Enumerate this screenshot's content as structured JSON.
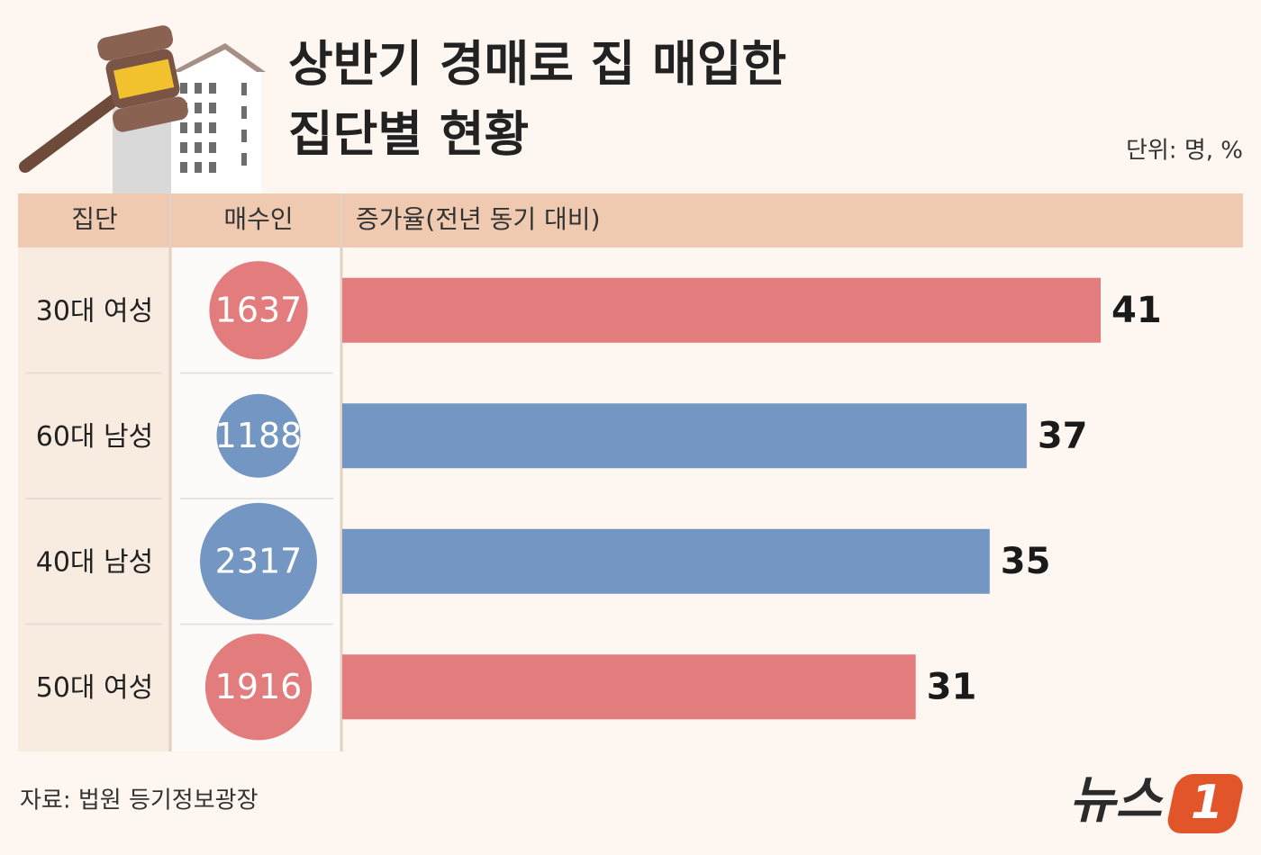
{
  "chart_data": {
    "type": "bar",
    "title": [
      "상반기 경매로 집 매입한",
      "집단별 현황"
    ],
    "unit": "단위: 명, %",
    "headers": [
      "집단",
      "매수인",
      "증가율(전년 동기 대비)"
    ],
    "categories": [
      "30대 여성",
      "60대 남성",
      "40대 남성",
      "50대 여성"
    ],
    "buyers": [
      1637,
      1188,
      2317,
      1916
    ],
    "values": [
      41,
      37,
      35,
      31
    ],
    "colors": [
      "#e27c7d",
      "#7396c2",
      "#7396c2",
      "#e27c7d"
    ],
    "source": "자료: 법원 등기정보광장",
    "logo": "뉴스",
    "logo_mark": "1"
  }
}
